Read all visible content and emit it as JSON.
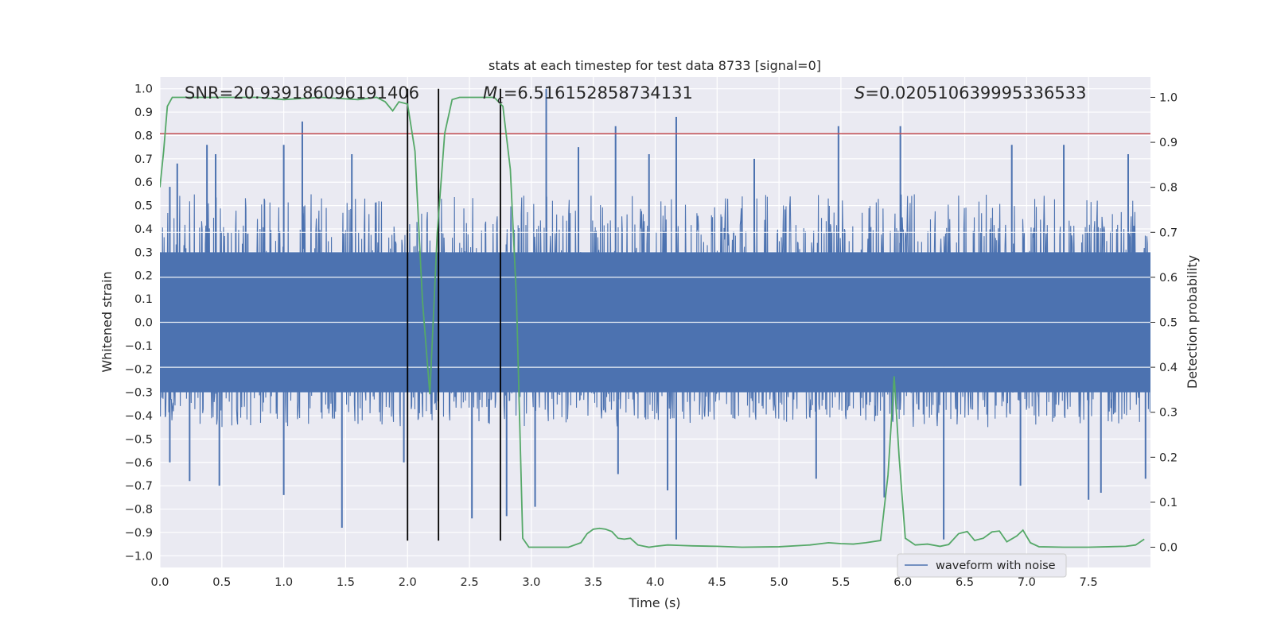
{
  "chart_data": {
    "type": "line",
    "title": "stats at each timestep for test data 8733 [signal=0]",
    "xlabel": "Time (s)",
    "ylabel": "Whitened strain",
    "y2label": "Detection probability",
    "xlim": [
      0.0,
      8.0
    ],
    "ylim": [
      -1.05,
      1.05
    ],
    "y2lim": [
      -0.045,
      1.045
    ],
    "x_ticks": [
      0.0,
      0.5,
      1.0,
      1.5,
      2.0,
      2.5,
      3.0,
      3.5,
      4.0,
      4.5,
      5.0,
      5.5,
      6.0,
      6.5,
      7.0,
      7.5
    ],
    "x_tick_labels": [
      "0.0",
      "0.5",
      "1.0",
      "1.5",
      "2.0",
      "2.5",
      "3.0",
      "3.5",
      "4.0",
      "4.5",
      "5.0",
      "5.5",
      "6.0",
      "6.5",
      "7.0",
      "7.5"
    ],
    "y_ticks": [
      -1.0,
      -0.9,
      -0.8,
      -0.7,
      -0.6,
      -0.5,
      -0.4,
      -0.3,
      -0.2,
      -0.1,
      0.0,
      0.1,
      0.2,
      0.3,
      0.4,
      0.5,
      0.6,
      0.7,
      0.8,
      0.9,
      1.0
    ],
    "y_tick_labels": [
      "−1.0",
      "−0.9",
      "−0.8",
      "−0.7",
      "−0.6",
      "−0.5",
      "−0.4",
      "−0.3",
      "−0.2",
      "−0.1",
      "0.0",
      "0.1",
      "0.2",
      "0.3",
      "0.4",
      "0.5",
      "0.6",
      "0.7",
      "0.8",
      "0.9",
      "1.0"
    ],
    "y2_ticks": [
      0.0,
      0.1,
      0.2,
      0.3,
      0.4,
      0.5,
      0.6,
      0.7,
      0.8,
      0.9,
      1.0
    ],
    "y2_tick_labels": [
      "0.0",
      "0.1",
      "0.2",
      "0.3",
      "0.4",
      "0.5",
      "0.6",
      "0.7",
      "0.8",
      "0.9",
      "1.0"
    ],
    "annotations": {
      "snr": "SNR=20.939186096191406",
      "mc_symbol": "M",
      "mc_sub": "c",
      "mc_value": "=6.516152858734131",
      "s_symbol": "S",
      "s_value": "=0.020510639995336533"
    },
    "series": [
      {
        "name": "waveform with noise",
        "color": "#4c72b0",
        "axis": "left",
        "envelope": {
          "core_range": [
            -0.3,
            0.3
          ],
          "burst_range": [
            -0.45,
            0.55
          ]
        },
        "peaks": [
          [
            0.08,
            0.58
          ],
          [
            0.14,
            0.68
          ],
          [
            0.38,
            0.76
          ],
          [
            0.45,
            0.72
          ],
          [
            1.0,
            0.76
          ],
          [
            1.15,
            0.86
          ],
          [
            1.55,
            0.72
          ],
          [
            3.12,
            1.0
          ],
          [
            3.38,
            0.75
          ],
          [
            3.68,
            0.84
          ],
          [
            3.95,
            0.72
          ],
          [
            4.17,
            0.88
          ],
          [
            4.8,
            0.7
          ],
          [
            5.48,
            0.84
          ],
          [
            5.98,
            0.84
          ],
          [
            6.88,
            0.76
          ],
          [
            7.3,
            0.76
          ],
          [
            7.82,
            0.72
          ]
        ],
        "troughs": [
          [
            0.08,
            -0.6
          ],
          [
            0.24,
            -0.68
          ],
          [
            0.48,
            -0.7
          ],
          [
            1.0,
            -0.74
          ],
          [
            1.47,
            -0.88
          ],
          [
            1.97,
            -0.6
          ],
          [
            2.52,
            -0.84
          ],
          [
            2.8,
            -0.83
          ],
          [
            3.03,
            -0.79
          ],
          [
            3.7,
            -0.65
          ],
          [
            4.1,
            -0.72
          ],
          [
            4.17,
            -0.93
          ],
          [
            5.3,
            -0.67
          ],
          [
            5.85,
            -0.75
          ],
          [
            6.33,
            -0.93
          ],
          [
            6.95,
            -0.7
          ],
          [
            7.5,
            -0.76
          ],
          [
            7.6,
            -0.73
          ],
          [
            7.96,
            -0.67
          ]
        ]
      },
      {
        "name": "",
        "color": "#55a868",
        "axis": "right",
        "x": [
          0.0,
          0.03,
          0.06,
          0.1,
          0.2,
          0.5,
          0.8,
          1.0,
          1.3,
          1.6,
          1.75,
          1.82,
          1.88,
          1.93,
          2.0,
          2.06,
          2.12,
          2.18,
          2.24,
          2.3,
          2.36,
          2.42,
          2.5,
          2.6,
          2.7,
          2.77,
          2.83,
          2.88,
          2.93,
          2.98,
          3.1,
          3.3,
          3.4,
          3.45,
          3.5,
          3.55,
          3.6,
          3.65,
          3.7,
          3.75,
          3.8,
          3.86,
          3.95,
          4.0,
          4.1,
          4.2,
          4.3,
          4.5,
          4.7,
          5.0,
          5.25,
          5.4,
          5.5,
          5.6,
          5.7,
          5.82,
          5.88,
          5.93,
          5.97,
          6.02,
          6.1,
          6.2,
          6.3,
          6.37,
          6.45,
          6.52,
          6.58,
          6.65,
          6.72,
          6.78,
          6.84,
          6.92,
          6.97,
          7.03,
          7.1,
          7.3,
          7.5,
          7.8,
          7.88,
          7.95
        ],
        "y": [
          0.8,
          0.88,
          0.98,
          1.0,
          1.0,
          1.0,
          1.0,
          0.995,
          1.0,
          0.995,
          1.0,
          0.99,
          0.97,
          0.99,
          0.985,
          0.88,
          0.55,
          0.34,
          0.7,
          0.92,
          0.995,
          1.0,
          1.0,
          1.0,
          1.0,
          0.98,
          0.84,
          0.55,
          0.02,
          0.0,
          0.0,
          0.0,
          0.01,
          0.03,
          0.04,
          0.042,
          0.04,
          0.035,
          0.02,
          0.018,
          0.02,
          0.005,
          0.0,
          0.002,
          0.005,
          0.004,
          0.003,
          0.002,
          0.0,
          0.001,
          0.005,
          0.01,
          0.008,
          0.007,
          0.01,
          0.015,
          0.16,
          0.38,
          0.2,
          0.02,
          0.005,
          0.007,
          0.002,
          0.006,
          0.03,
          0.035,
          0.015,
          0.02,
          0.034,
          0.036,
          0.012,
          0.025,
          0.038,
          0.01,
          0.001,
          0.0,
          0.0,
          0.002,
          0.005,
          0.018
        ]
      }
    ],
    "threshold": {
      "value": 0.8075,
      "axis": "left",
      "color": "#c44e52"
    },
    "vertical_markers": [
      2.0,
      2.25,
      2.75
    ],
    "grid": true,
    "legend": {
      "placement": "lower right",
      "entries": [
        "waveform with noise"
      ]
    }
  }
}
